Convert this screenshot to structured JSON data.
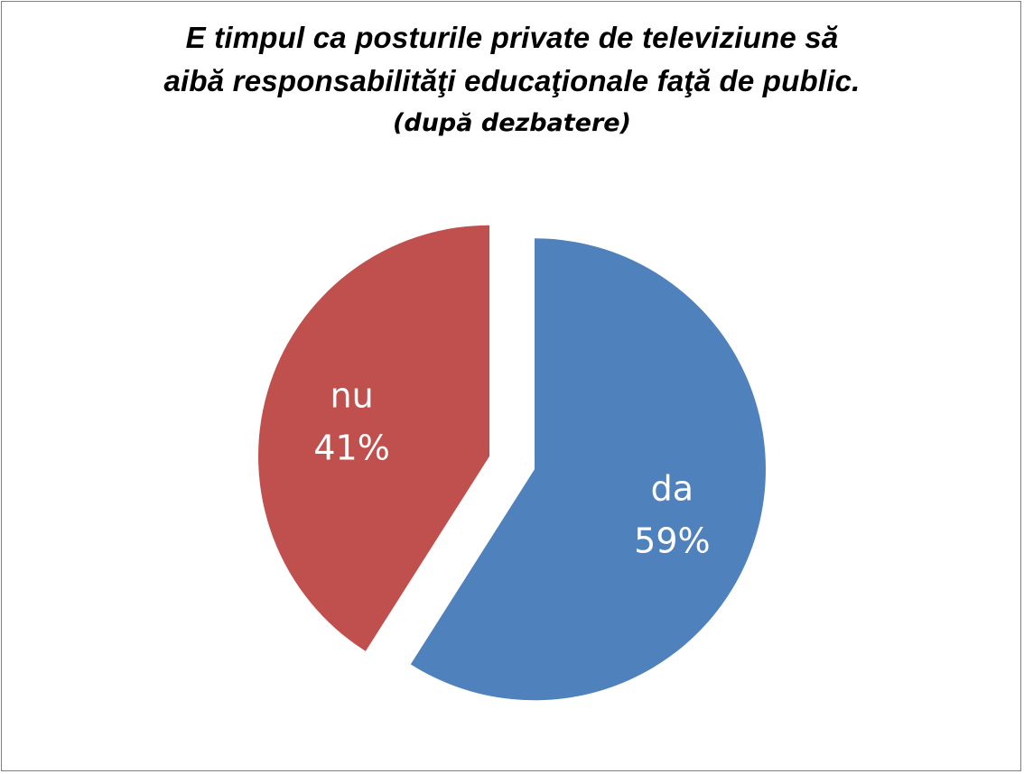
{
  "chart_data": {
    "type": "pie",
    "title": "E timpul ca posturile private de televiziune să aibă responsabilităţi educaţionale faţă de public.",
    "title_lines": [
      "E timpul ca posturile private de televiziune să",
      "aibă responsabilităţi educaţionale faţă de public."
    ],
    "subtitle": "(după dezbatere)",
    "categories": [
      "da",
      "nu"
    ],
    "values": [
      59,
      41
    ],
    "labels": [
      "59%",
      "41%"
    ],
    "colors": [
      "#4f81bd",
      "#c0504d"
    ],
    "exploded": true,
    "legend": "none"
  }
}
